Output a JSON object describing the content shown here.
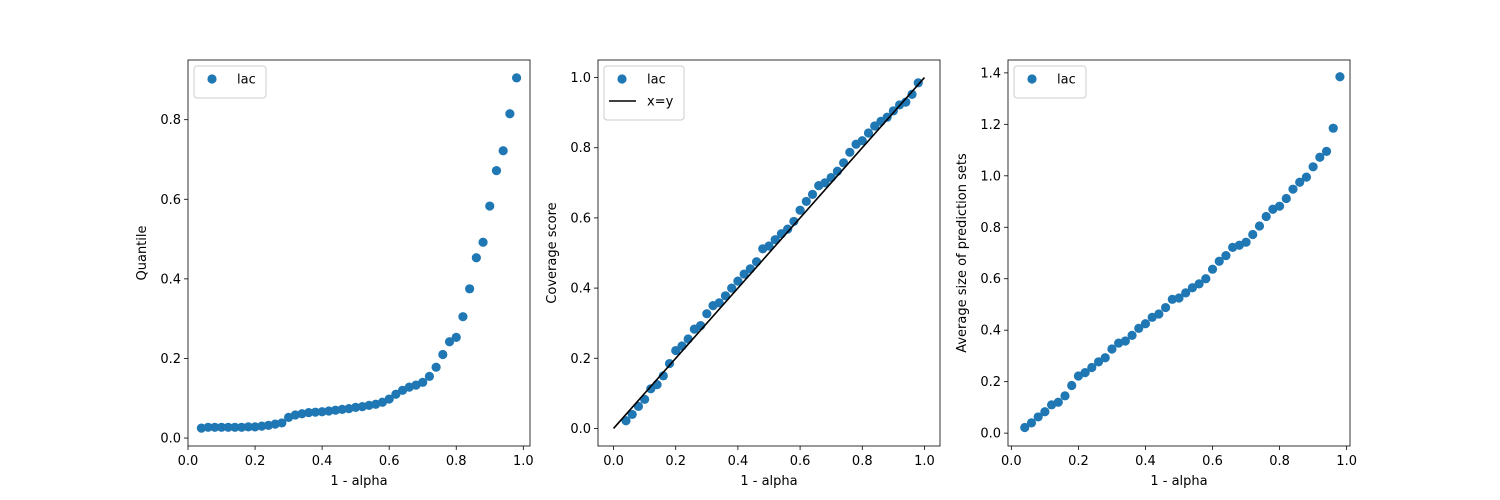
{
  "colors": {
    "marker": "#1f77b4",
    "reference_line": "#000000"
  },
  "chart_data": [
    {
      "type": "scatter",
      "xlabel": "1 - alpha",
      "ylabel": "Quantile",
      "xlim": [
        0.0,
        1.02
      ],
      "ylim": [
        -0.02,
        0.95
      ],
      "xticks": [
        0.0,
        0.2,
        0.4,
        0.6,
        0.8,
        1.0
      ],
      "xtick_labels": [
        "0.0",
        "0.2",
        "0.4",
        "0.6",
        "0.8",
        "1.0"
      ],
      "yticks": [
        0.0,
        0.2,
        0.4,
        0.6,
        0.8
      ],
      "ytick_labels": [
        "0.0",
        "0.2",
        "0.4",
        "0.6",
        "0.8"
      ],
      "legend": {
        "placement": "top-left",
        "entries": [
          {
            "label": "lac",
            "kind": "marker"
          }
        ]
      },
      "grid": false,
      "series": [
        {
          "name": "lac",
          "x": [
            0.04,
            0.06,
            0.08,
            0.1,
            0.12,
            0.14,
            0.16,
            0.18,
            0.2,
            0.22,
            0.24,
            0.26,
            0.28,
            0.3,
            0.32,
            0.34,
            0.36,
            0.38,
            0.4,
            0.42,
            0.44,
            0.46,
            0.48,
            0.5,
            0.52,
            0.54,
            0.56,
            0.58,
            0.6,
            0.62,
            0.64,
            0.66,
            0.68,
            0.7,
            0.72,
            0.74,
            0.76,
            0.78,
            0.8,
            0.82,
            0.84,
            0.86,
            0.88,
            0.9,
            0.92,
            0.94,
            0.96,
            0.98
          ],
          "y": [
            0.025,
            0.027,
            0.027,
            0.027,
            0.027,
            0.027,
            0.027,
            0.028,
            0.028,
            0.03,
            0.032,
            0.035,
            0.038,
            0.052,
            0.058,
            0.061,
            0.064,
            0.065,
            0.066,
            0.068,
            0.07,
            0.072,
            0.074,
            0.077,
            0.079,
            0.082,
            0.085,
            0.09,
            0.098,
            0.11,
            0.12,
            0.128,
            0.133,
            0.14,
            0.155,
            0.178,
            0.21,
            0.242,
            0.253,
            0.305,
            0.375,
            0.453,
            0.492,
            0.583,
            0.672,
            0.722,
            0.815,
            0.905
          ]
        }
      ]
    },
    {
      "type": "scatter",
      "xlabel": "1 - alpha",
      "ylabel": "Coverage score",
      "xlim": [
        -0.05,
        1.05
      ],
      "ylim": [
        -0.05,
        1.05
      ],
      "xticks": [
        0.0,
        0.2,
        0.4,
        0.6,
        0.8,
        1.0
      ],
      "xtick_labels": [
        "0.0",
        "0.2",
        "0.4",
        "0.6",
        "0.8",
        "1.0"
      ],
      "yticks": [
        0.0,
        0.2,
        0.4,
        0.6,
        0.8,
        1.0
      ],
      "ytick_labels": [
        "0.0",
        "0.2",
        "0.4",
        "0.6",
        "0.8",
        "1.0"
      ],
      "legend": {
        "placement": "top-left",
        "entries": [
          {
            "label": "lac",
            "kind": "marker"
          },
          {
            "label": "x=y",
            "kind": "line"
          }
        ]
      },
      "grid": false,
      "series": [
        {
          "name": "lac",
          "x": [
            0.04,
            0.06,
            0.08,
            0.1,
            0.12,
            0.14,
            0.16,
            0.18,
            0.2,
            0.22,
            0.24,
            0.26,
            0.28,
            0.3,
            0.32,
            0.34,
            0.36,
            0.38,
            0.4,
            0.42,
            0.44,
            0.46,
            0.48,
            0.5,
            0.52,
            0.54,
            0.56,
            0.58,
            0.6,
            0.62,
            0.64,
            0.66,
            0.68,
            0.7,
            0.72,
            0.74,
            0.76,
            0.78,
            0.8,
            0.82,
            0.84,
            0.86,
            0.88,
            0.9,
            0.92,
            0.94,
            0.96,
            0.98
          ],
          "y": [
            0.022,
            0.04,
            0.063,
            0.083,
            0.113,
            0.125,
            0.15,
            0.185,
            0.222,
            0.235,
            0.255,
            0.283,
            0.293,
            0.327,
            0.35,
            0.358,
            0.378,
            0.4,
            0.42,
            0.44,
            0.455,
            0.475,
            0.512,
            0.52,
            0.538,
            0.555,
            0.568,
            0.59,
            0.622,
            0.647,
            0.667,
            0.692,
            0.7,
            0.715,
            0.733,
            0.757,
            0.787,
            0.81,
            0.82,
            0.842,
            0.862,
            0.875,
            0.887,
            0.905,
            0.922,
            0.93,
            0.952,
            0.985
          ]
        },
        {
          "name": "x=y",
          "kind": "line",
          "x": [
            0.0,
            1.0
          ],
          "y": [
            0.0,
            1.0
          ]
        }
      ]
    },
    {
      "type": "scatter",
      "xlabel": "1 - alpha",
      "ylabel": "Average size of prediction sets",
      "xlim": [
        -0.01,
        1.01
      ],
      "ylim": [
        -0.05,
        1.45
      ],
      "xticks": [
        0.0,
        0.2,
        0.4,
        0.6,
        0.8,
        1.0
      ],
      "xtick_labels": [
        "0.0",
        "0.2",
        "0.4",
        "0.6",
        "0.8",
        "1.0"
      ],
      "yticks": [
        0.0,
        0.2,
        0.4,
        0.6,
        0.8,
        1.0,
        1.2,
        1.4
      ],
      "ytick_labels": [
        "0.0",
        "0.2",
        "0.4",
        "0.6",
        "0.8",
        "1.0",
        "1.2",
        "1.4"
      ],
      "legend": {
        "placement": "top-left",
        "entries": [
          {
            "label": "lac",
            "kind": "marker"
          }
        ]
      },
      "grid": false,
      "series": [
        {
          "name": "lac",
          "x": [
            0.04,
            0.06,
            0.08,
            0.1,
            0.12,
            0.14,
            0.16,
            0.18,
            0.2,
            0.22,
            0.24,
            0.26,
            0.28,
            0.3,
            0.32,
            0.34,
            0.36,
            0.38,
            0.4,
            0.42,
            0.44,
            0.46,
            0.48,
            0.5,
            0.52,
            0.54,
            0.56,
            0.58,
            0.6,
            0.62,
            0.64,
            0.66,
            0.68,
            0.7,
            0.72,
            0.74,
            0.76,
            0.78,
            0.8,
            0.82,
            0.84,
            0.86,
            0.88,
            0.9,
            0.92,
            0.94,
            0.96,
            0.98
          ],
          "y": [
            0.022,
            0.04,
            0.063,
            0.083,
            0.11,
            0.12,
            0.145,
            0.185,
            0.222,
            0.235,
            0.255,
            0.277,
            0.293,
            0.327,
            0.35,
            0.358,
            0.38,
            0.407,
            0.425,
            0.45,
            0.463,
            0.488,
            0.52,
            0.525,
            0.545,
            0.565,
            0.58,
            0.6,
            0.637,
            0.668,
            0.69,
            0.722,
            0.73,
            0.742,
            0.772,
            0.805,
            0.842,
            0.87,
            0.882,
            0.912,
            0.948,
            0.975,
            0.995,
            1.035,
            1.072,
            1.095,
            1.185,
            1.385
          ]
        }
      ]
    }
  ]
}
